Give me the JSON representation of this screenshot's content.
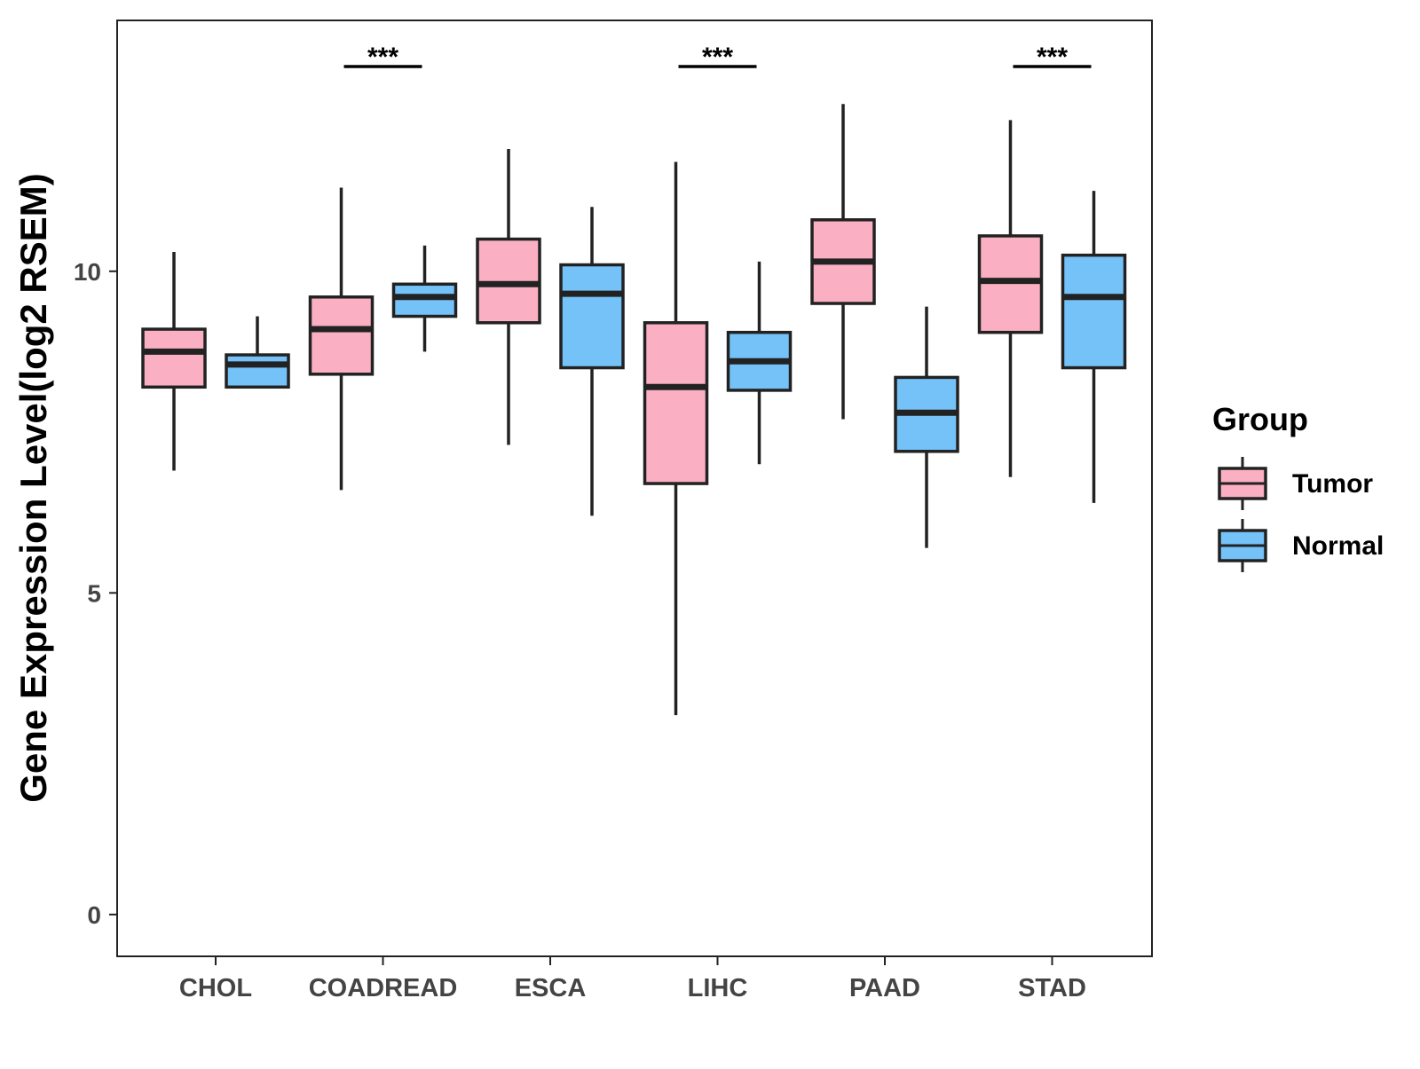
{
  "chart_data": {
    "type": "boxplot",
    "title": "",
    "xlabel": "",
    "ylabel": "Gene Expression Level(log2 RSEM)",
    "ylim": [
      -0.65,
      13.9
    ],
    "yticks": [
      0,
      5,
      10
    ],
    "grid": false,
    "categories": [
      "CHOL",
      "COADREAD",
      "ESCA",
      "LIHC",
      "PAAD",
      "STAD"
    ],
    "legend": {
      "title": "Group",
      "position": "right",
      "entries": [
        {
          "name": "Tumor",
          "color": "#FAB0C2"
        },
        {
          "name": "Normal",
          "color": "#74C2F8"
        }
      ]
    },
    "series": [
      {
        "name": "Tumor",
        "color": "#FAB0C2",
        "boxes": [
          {
            "category": "CHOL",
            "min": 6.9,
            "q1": 8.2,
            "median": 8.75,
            "q3": 9.1,
            "max": 10.3
          },
          {
            "category": "COADREAD",
            "min": 6.6,
            "q1": 8.4,
            "median": 9.1,
            "q3": 9.6,
            "max": 11.3
          },
          {
            "category": "ESCA",
            "min": 7.3,
            "q1": 9.2,
            "median": 9.8,
            "q3": 10.5,
            "max": 11.9
          },
          {
            "category": "LIHC",
            "min": 3.1,
            "q1": 6.7,
            "median": 8.2,
            "q3": 9.2,
            "max": 11.7
          },
          {
            "category": "PAAD",
            "min": 7.7,
            "q1": 9.5,
            "median": 10.15,
            "q3": 10.8,
            "max": 12.6
          },
          {
            "category": "STAD",
            "min": 6.8,
            "q1": 9.05,
            "median": 9.85,
            "q3": 10.55,
            "max": 12.35
          }
        ]
      },
      {
        "name": "Normal",
        "color": "#74C2F8",
        "boxes": [
          {
            "category": "CHOL",
            "min": 8.2,
            "q1": 8.2,
            "median": 8.55,
            "q3": 8.7,
            "max": 9.3
          },
          {
            "category": "COADREAD",
            "min": 8.75,
            "q1": 9.3,
            "median": 9.6,
            "q3": 9.8,
            "max": 10.4
          },
          {
            "category": "ESCA",
            "min": 6.2,
            "q1": 8.5,
            "median": 9.65,
            "q3": 10.1,
            "max": 11.0
          },
          {
            "category": "LIHC",
            "min": 7.0,
            "q1": 8.15,
            "median": 8.6,
            "q3": 9.05,
            "max": 10.15
          },
          {
            "category": "PAAD",
            "min": 5.7,
            "q1": 7.2,
            "median": 7.8,
            "q3": 8.35,
            "max": 9.45
          },
          {
            "category": "STAD",
            "min": 6.4,
            "q1": 8.5,
            "median": 9.6,
            "q3": 10.25,
            "max": 11.25
          }
        ]
      }
    ],
    "annotations": [
      {
        "category": "COADREAD",
        "text": "***"
      },
      {
        "category": "LIHC",
        "text": "***"
      },
      {
        "category": "STAD",
        "text": "***"
      }
    ]
  }
}
